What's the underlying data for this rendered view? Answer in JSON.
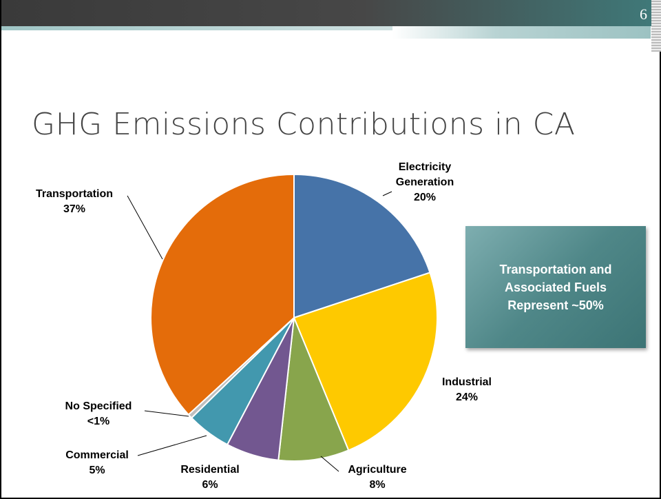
{
  "page_number": "6",
  "callout": "Transportation and Associated Fuels Represent ~50%",
  "chart_data": {
    "type": "pie",
    "title": "GHG Emissions Contributions in CA",
    "categories": [
      "Electricity Generation",
      "Industrial",
      "Agriculture",
      "Residential",
      "Commercial",
      "No Specified",
      "Transportation"
    ],
    "values": [
      20,
      24,
      8,
      6,
      5,
      0.5,
      37
    ],
    "value_labels": [
      "20%",
      "24%",
      "8%",
      "6%",
      "5%",
      "<1%",
      "37%"
    ],
    "colors": [
      "#4673a8",
      "#fec900",
      "#88a54c",
      "#725790",
      "#4298ae",
      "#bfbfbf",
      "#e46c0a"
    ]
  }
}
